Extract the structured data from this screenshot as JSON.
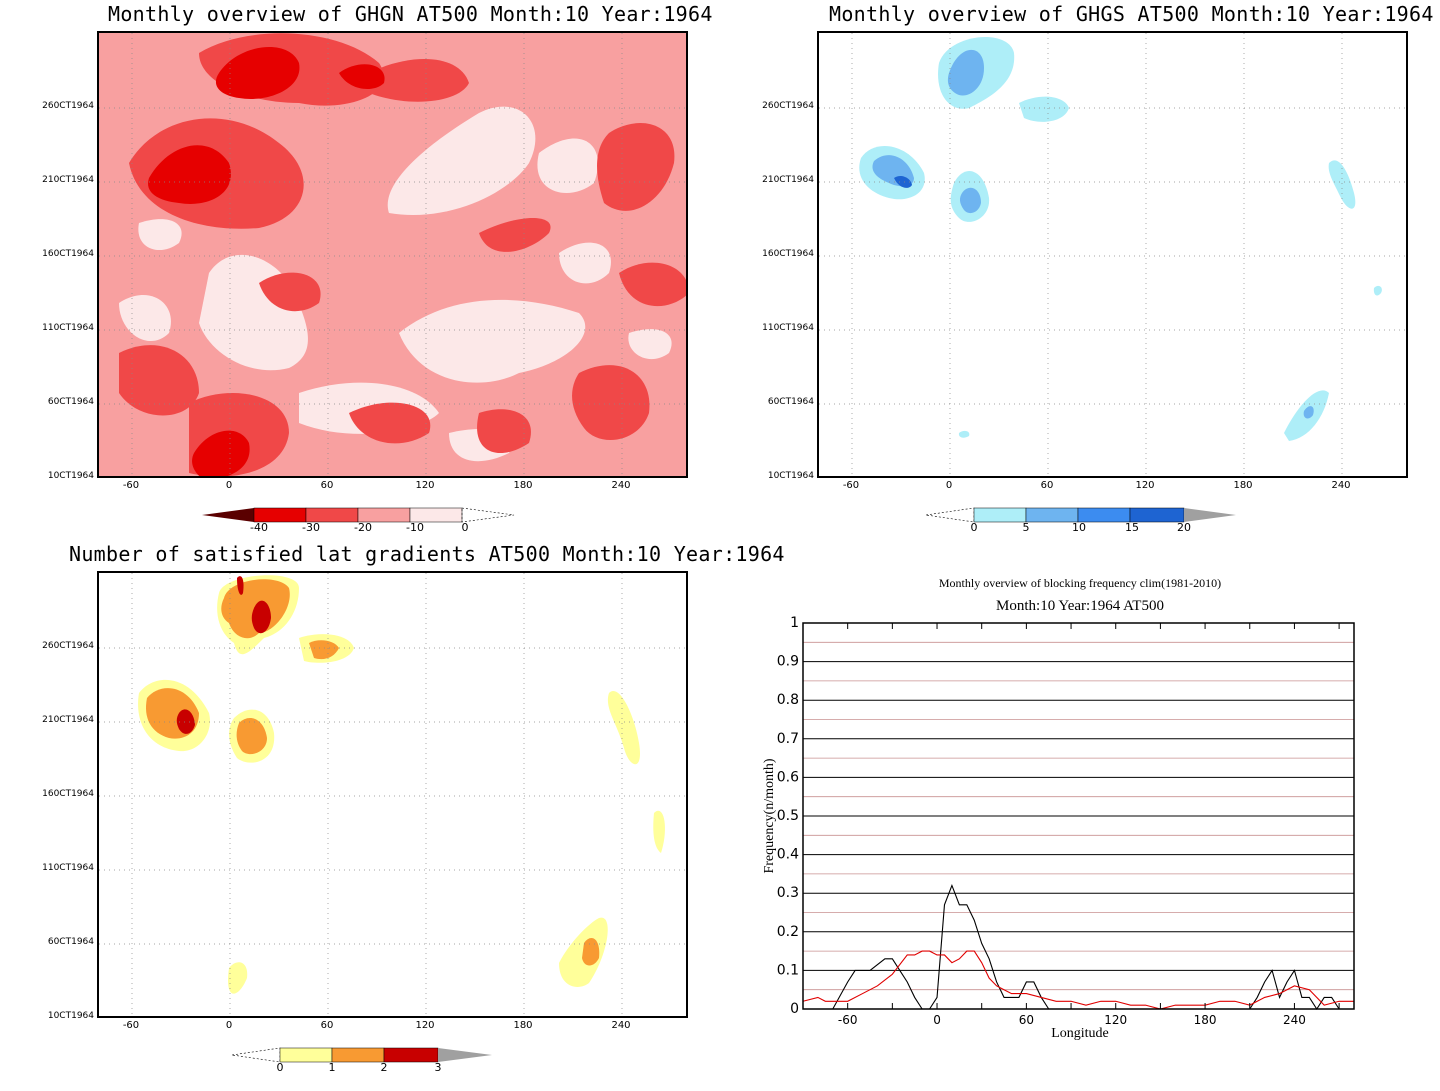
{
  "panels": {
    "ghgn": {
      "title": "Monthly overview of GHGN AT500 Month:10 Year:1964",
      "yticks": [
        "260CT1964",
        "210CT1964",
        "160CT1964",
        "110CT1964",
        "60CT1964",
        "10CT1964"
      ],
      "xticks": [
        "-60",
        "0",
        "60",
        "120",
        "180",
        "240"
      ],
      "colorbar": {
        "ticks": [
          "-40",
          "-30",
          "-20",
          "-10",
          "0"
        ],
        "colors": [
          "#5a0000",
          "#e60000",
          "#f04848",
          "#f8a0a0",
          "#fce8e8"
        ]
      }
    },
    "ghgs": {
      "title": "Monthly overview of GHGS AT500 Month:10 Year:1964",
      "yticks": [
        "260CT1964",
        "210CT1964",
        "160CT1964",
        "110CT1964",
        "60CT1964",
        "10CT1964"
      ],
      "xticks": [
        "-60",
        "0",
        "60",
        "120",
        "180",
        "240"
      ],
      "colorbar": {
        "ticks": [
          "0",
          "5",
          "10",
          "15",
          "20"
        ],
        "colors": [
          "#aeeef8",
          "#6eb4f0",
          "#3c8cf0",
          "#1e64d2",
          "#a0a0a0"
        ]
      }
    },
    "lat": {
      "title": "Number of satisfied lat gradients AT500 Month:10 Year:1964",
      "yticks": [
        "260CT1964",
        "210CT1964",
        "160CT1964",
        "110CT1964",
        "60CT1964",
        "10CT1964"
      ],
      "xticks": [
        "-60",
        "0",
        "60",
        "120",
        "180",
        "240"
      ],
      "colorbar": {
        "ticks": [
          "0",
          "1",
          "2",
          "3"
        ],
        "colors": [
          "#ffff9a",
          "#f89a32",
          "#c80000",
          "#a0a0a0"
        ]
      }
    },
    "freq": {
      "title": "Monthly overview of blocking frequency clim(1981-2010)",
      "subtitle": "Month:10 Year:1964  AT500",
      "xlabel": "Longitude",
      "ylabel": "Frequency(n/month)"
    }
  },
  "chart_data": [
    {
      "type": "heatmap",
      "title": "Monthly overview of GHGN AT500 Month:10 Year:1964",
      "x_range": [
        -75,
        285
      ],
      "y_ticks": [
        "260CT1964",
        "210CT1964",
        "160CT1964",
        "110CT1964",
        "60CT1964",
        "10CT1964"
      ],
      "levels": [
        -40,
        -30,
        -20,
        -10,
        0
      ],
      "dominant_level": "-20 to -10",
      "blobs": [
        {
          "lon": -25,
          "day": 21,
          "level": -30
        },
        {
          "lon": 30,
          "day": 29,
          "level": -30
        },
        {
          "lon": 5,
          "day": 3,
          "level": -30
        },
        {
          "lon": 210,
          "day": 5,
          "level": -20
        },
        {
          "lon": 245,
          "day": 21,
          "level": -20
        },
        {
          "lon": 20,
          "day": 12,
          "level": 0
        },
        {
          "lon": 150,
          "day": 24,
          "level": 0
        },
        {
          "lon": 115,
          "day": 12,
          "level": 0
        }
      ]
    },
    {
      "type": "heatmap",
      "title": "Monthly overview of GHGS AT500 Month:10 Year:1964",
      "x_range": [
        -75,
        285
      ],
      "levels": [
        0,
        5,
        10,
        15,
        20
      ],
      "blobs": [
        {
          "lon": 10,
          "day": 29,
          "level": 10
        },
        {
          "lon": -28,
          "day": 21,
          "level": 15
        },
        {
          "lon": 15,
          "day": 20,
          "level": 10
        },
        {
          "lon": 60,
          "day": 26,
          "level": 5
        },
        {
          "lon": 240,
          "day": 21,
          "level": 5
        },
        {
          "lon": 220,
          "day": 5,
          "level": 10
        },
        {
          "lon": 262,
          "day": 13,
          "level": 5
        },
        {
          "lon": 7,
          "day": 3,
          "level": 5
        }
      ]
    },
    {
      "type": "heatmap",
      "title": "Number of satisfied lat gradients AT500 Month:10 Year:1964",
      "x_range": [
        -75,
        285
      ],
      "levels": [
        0,
        1,
        2,
        3
      ],
      "blobs": [
        {
          "lon": 18,
          "day": 29,
          "level": 3
        },
        {
          "lon": -28,
          "day": 21,
          "level": 3
        },
        {
          "lon": 15,
          "day": 20,
          "level": 2
        },
        {
          "lon": 57,
          "day": 26,
          "level": 2
        },
        {
          "lon": 240,
          "day": 21,
          "level": 1
        },
        {
          "lon": 220,
          "day": 5,
          "level": 2
        },
        {
          "lon": 262,
          "day": 12,
          "level": 1
        },
        {
          "lon": 6,
          "day": 3,
          "level": 1
        }
      ]
    },
    {
      "type": "line",
      "title": "Monthly overview of blocking frequency clim(1981-2010)",
      "subtitle": "Month:10 Year:1964  AT500",
      "xlabel": "Longitude",
      "ylabel": "Frequency(n/month)",
      "xlim": [
        -90,
        280
      ],
      "ylim": [
        0,
        1
      ],
      "xticks": [
        -60,
        0,
        60,
        120,
        180,
        240
      ],
      "yticks": [
        0,
        0.1,
        0.2,
        0.3,
        0.4,
        0.5,
        0.6,
        0.7,
        0.8,
        0.9,
        1
      ],
      "grid": true,
      "series": [
        {
          "color": "#000000",
          "x": [
            -90,
            -80,
            -70,
            -60,
            -55,
            -45,
            -35,
            -30,
            -25,
            -20,
            -15,
            -10,
            -5,
            0,
            5,
            10,
            15,
            20,
            25,
            30,
            35,
            40,
            45,
            50,
            55,
            60,
            65,
            70,
            75,
            80,
            85,
            90,
            200,
            210,
            215,
            220,
            225,
            230,
            235,
            240,
            245,
            250,
            255,
            260,
            265,
            270,
            275
          ],
          "y": [
            0,
            0,
            0,
            0.07,
            0.1,
            0.1,
            0.13,
            0.13,
            0.1,
            0.07,
            0.03,
            0,
            0,
            0.03,
            0.27,
            0.32,
            0.27,
            0.27,
            0.23,
            0.17,
            0.13,
            0.07,
            0.03,
            0.03,
            0.03,
            0.07,
            0.07,
            0.03,
            0,
            0,
            0,
            0,
            0,
            0,
            0.03,
            0.07,
            0.1,
            0.03,
            0.07,
            0.1,
            0.03,
            0.03,
            0,
            0.03,
            0.03,
            0,
            0
          ]
        },
        {
          "color": "#e00000",
          "x": [
            -90,
            -80,
            -75,
            -60,
            -50,
            -40,
            -30,
            -20,
            -15,
            -10,
            -5,
            0,
            5,
            10,
            15,
            20,
            25,
            30,
            35,
            40,
            45,
            50,
            60,
            70,
            80,
            90,
            100,
            110,
            120,
            130,
            140,
            150,
            160,
            170,
            180,
            190,
            200,
            210,
            220,
            230,
            240,
            250,
            260,
            270,
            280
          ],
          "y": [
            0.02,
            0.03,
            0.02,
            0.02,
            0.04,
            0.06,
            0.09,
            0.14,
            0.14,
            0.15,
            0.15,
            0.14,
            0.14,
            0.12,
            0.13,
            0.15,
            0.15,
            0.12,
            0.08,
            0.06,
            0.05,
            0.04,
            0.04,
            0.03,
            0.02,
            0.02,
            0.01,
            0.02,
            0.02,
            0.01,
            0.01,
            0,
            0.01,
            0.01,
            0.01,
            0.02,
            0.02,
            0.01,
            0.03,
            0.04,
            0.06,
            0.05,
            0.01,
            0.02,
            0.02
          ]
        }
      ]
    }
  ]
}
